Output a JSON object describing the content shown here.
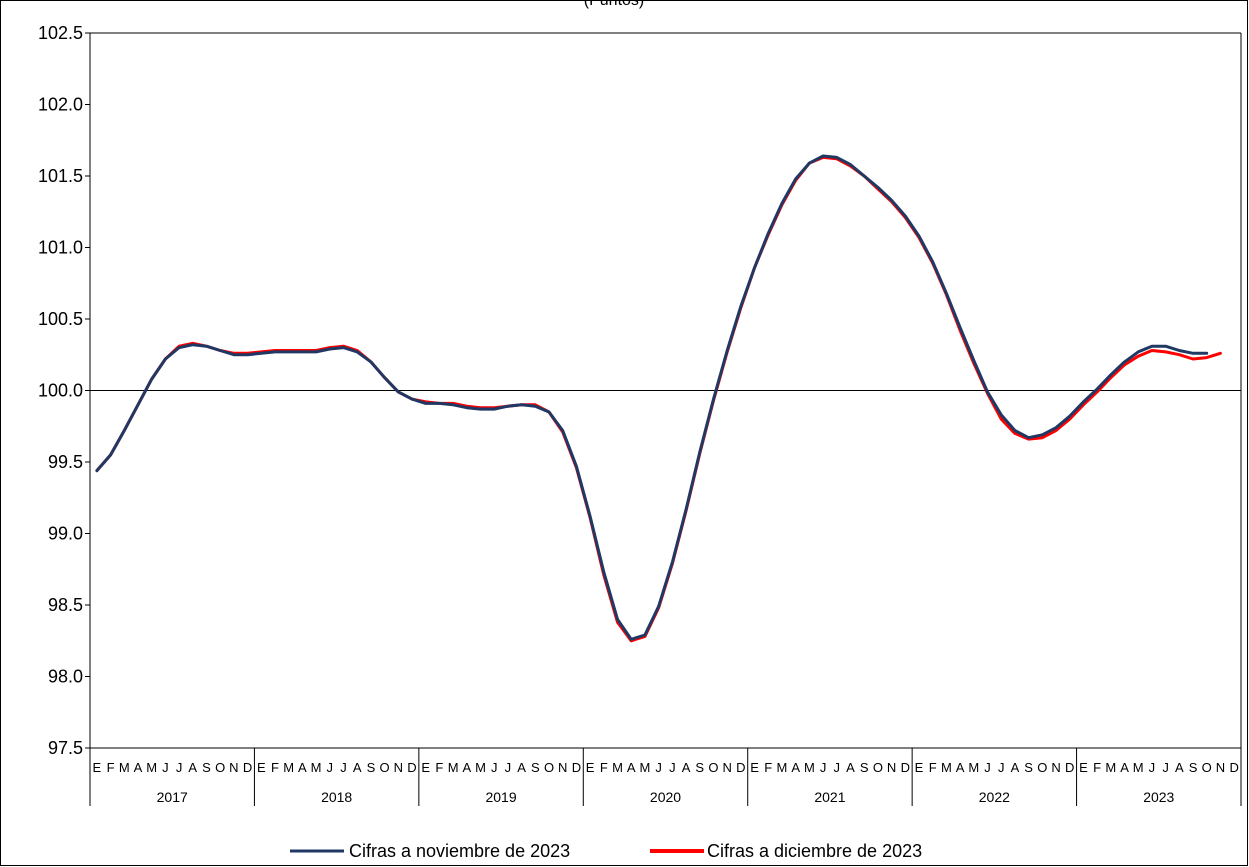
{
  "chart_data": {
    "type": "line",
    "title": "(Puntos)",
    "xlabel": "",
    "ylabel": "",
    "ylim": [
      97.5,
      102.5
    ],
    "yticks": [
      "97.5",
      "98.0",
      "98.5",
      "99.0",
      "99.5",
      "100.0",
      "100.5",
      "101.0",
      "101.5",
      "102.0",
      "102.5"
    ],
    "reference_line": 100.0,
    "grid": false,
    "legend_position": "bottom",
    "month_labels": [
      "E",
      "F",
      "M",
      "A",
      "M",
      "J",
      "J",
      "A",
      "S",
      "O",
      "N",
      "D"
    ],
    "years": [
      "2017",
      "2018",
      "2019",
      "2020",
      "2021",
      "2022",
      "2023"
    ],
    "colors": {
      "cifras_noviembre": "#1f3864",
      "cifras_diciembre": "#ff0000"
    },
    "series": [
      {
        "name": "Cifras a noviembre de 2023",
        "values": [
          99.44,
          99.55,
          99.72,
          99.9,
          100.08,
          100.22,
          100.3,
          100.32,
          100.31,
          100.28,
          100.25,
          100.25,
          100.26,
          100.27,
          100.27,
          100.27,
          100.27,
          100.29,
          100.3,
          100.27,
          100.2,
          100.09,
          99.99,
          99.94,
          99.91,
          99.91,
          99.9,
          99.88,
          99.87,
          99.87,
          99.89,
          99.9,
          99.89,
          99.85,
          99.72,
          99.47,
          99.12,
          98.73,
          98.4,
          98.26,
          98.29,
          98.49,
          98.8,
          99.17,
          99.57,
          99.94,
          100.28,
          100.59,
          100.86,
          101.1,
          101.31,
          101.48,
          101.59,
          101.64,
          101.63,
          101.58,
          101.5,
          101.42,
          101.33,
          101.22,
          101.08,
          100.9,
          100.68,
          100.44,
          100.21,
          99.99,
          99.83,
          99.72,
          99.67,
          99.69,
          99.74,
          99.82,
          99.92,
          100.01,
          100.11,
          100.2,
          100.27,
          100.31,
          100.31,
          100.28,
          100.26,
          100.26
        ]
      },
      {
        "name": "Cifras a diciembre de 2023",
        "values": [
          99.44,
          99.55,
          99.72,
          99.9,
          100.08,
          100.22,
          100.31,
          100.33,
          100.31,
          100.28,
          100.26,
          100.26,
          100.27,
          100.28,
          100.28,
          100.28,
          100.28,
          100.3,
          100.31,
          100.28,
          100.2,
          100.09,
          99.99,
          99.94,
          99.92,
          99.91,
          99.91,
          99.89,
          99.88,
          99.88,
          99.89,
          99.9,
          99.9,
          99.85,
          99.71,
          99.46,
          99.11,
          98.71,
          98.38,
          98.25,
          98.28,
          98.48,
          98.79,
          99.16,
          99.56,
          99.93,
          100.27,
          100.58,
          100.86,
          101.09,
          101.3,
          101.47,
          101.59,
          101.63,
          101.62,
          101.57,
          101.5,
          101.41,
          101.32,
          101.21,
          101.07,
          100.89,
          100.67,
          100.42,
          100.19,
          99.98,
          99.8,
          99.7,
          99.66,
          99.67,
          99.72,
          99.8,
          99.9,
          99.99,
          100.09,
          100.18,
          100.24,
          100.28,
          100.27,
          100.25,
          100.22,
          100.23,
          100.26
        ]
      }
    ]
  }
}
